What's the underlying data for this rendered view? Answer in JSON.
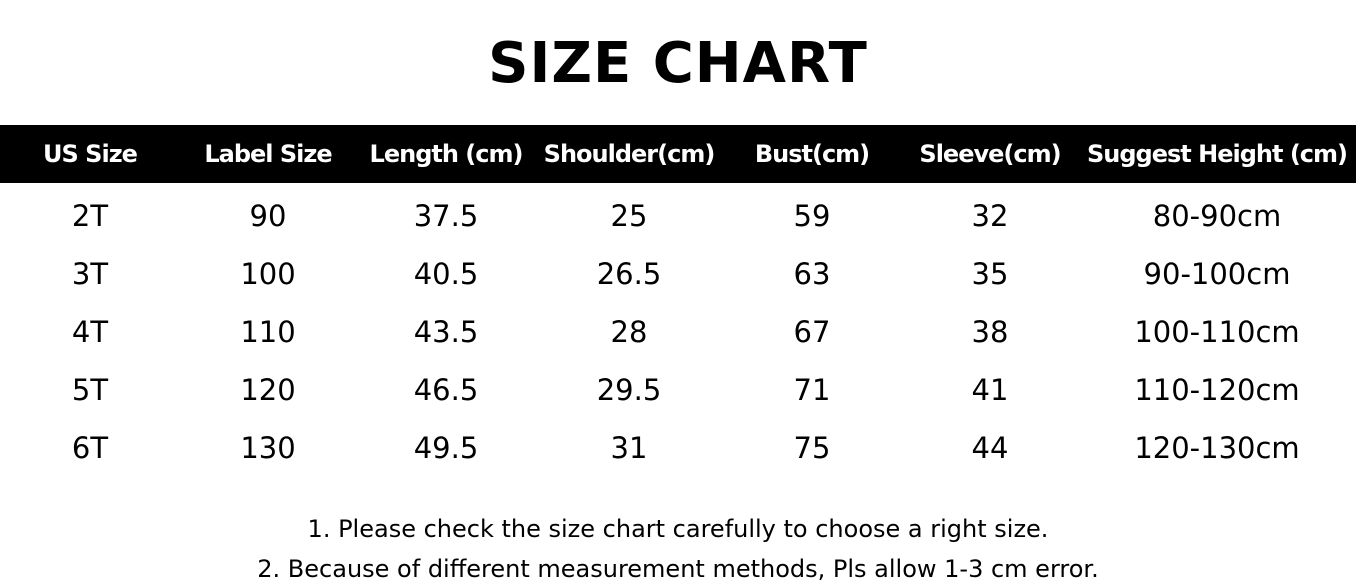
{
  "title": "SIZE CHART",
  "headers": [
    "US Size",
    "Label Size",
    "Length (cm)",
    "Shoulder(cm)",
    "Bust(cm)",
    "Sleeve(cm)",
    "Suggest Height (cm)"
  ],
  "rows": [
    [
      "2T",
      "90",
      "37.5",
      "25",
      "59",
      "32",
      "80-90cm"
    ],
    [
      "3T",
      "100",
      "40.5",
      "26.5",
      "63",
      "35",
      "90-100cm"
    ],
    [
      "4T",
      "110",
      "43.5",
      "28",
      "67",
      "38",
      "100-110cm"
    ],
    [
      "5T",
      "120",
      "46.5",
      "29.5",
      "71",
      "41",
      "110-120cm"
    ],
    [
      "6T",
      "130",
      "49.5",
      "31",
      "75",
      "44",
      "120-130cm"
    ]
  ],
  "notes": [
    "1. Please check the size chart carefully to choose a right size.",
    "2. Because of different measurement methods, Pls allow 1-3 cm error."
  ],
  "colors": {
    "header_bg": "#000000",
    "header_text": "#ffffff"
  }
}
